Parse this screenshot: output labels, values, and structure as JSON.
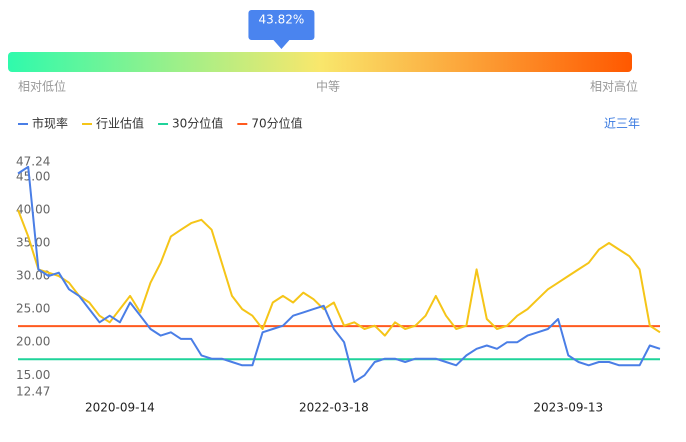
{
  "chart_data": {
    "type": "line",
    "percentile": {
      "value": 43.82,
      "label": "43.82%"
    },
    "scale_labels": [
      "相对低位",
      "中等",
      "相对高位"
    ],
    "range_option": "近三年",
    "ylim": [
      12.47,
      47.24
    ],
    "yticks": [
      47.24,
      {
        "value": 45,
        "label": "45.00"
      },
      {
        "value": 40,
        "label": "40.00"
      },
      {
        "value": 35,
        "label": "35.00"
      },
      {
        "value": 30,
        "label": "30.00"
      },
      {
        "value": 25,
        "label": "25.00"
      },
      {
        "value": 20,
        "label": "20.00"
      },
      {
        "value": 15,
        "label": "15.00"
      },
      12.47
    ],
    "categories": [
      null,
      null,
      null,
      null,
      null,
      null,
      null,
      null,
      null,
      null,
      "2020-09-14",
      null,
      null,
      null,
      null,
      null,
      null,
      null,
      null,
      null,
      null,
      null,
      null,
      null,
      null,
      null,
      null,
      null,
      null,
      null,
      null,
      "2022-03-18",
      null,
      null,
      null,
      null,
      null,
      null,
      null,
      null,
      null,
      null,
      null,
      null,
      null,
      null,
      null,
      null,
      null,
      null,
      null,
      null,
      null,
      null,
      "2023-09-13",
      null,
      null,
      null,
      null,
      null,
      null,
      null,
      null,
      null
    ],
    "series": [
      {
        "name": "市现率",
        "color": "#4a7ee6",
        "values": [
          45.5,
          46.5,
          31,
          30,
          30.5,
          28,
          27,
          25,
          23,
          24,
          23,
          26,
          24,
          22,
          21,
          21.5,
          20.5,
          20.5,
          18,
          17.5,
          17.5,
          17,
          16.5,
          16.5,
          21.5,
          22,
          22.5,
          24,
          24.5,
          25,
          25.5,
          22,
          20,
          14,
          15,
          17,
          17.5,
          17.5,
          17,
          17.5,
          17.5,
          17.5,
          17,
          16.5,
          18,
          19,
          19.5,
          19,
          20,
          20,
          21,
          21.5,
          22,
          23.5,
          18,
          17,
          16.5,
          17,
          17,
          16.5,
          16.5,
          16.5,
          19.5,
          19
        ]
      },
      {
        "name": "行业估值",
        "color": "#f5c518",
        "values": [
          40,
          36,
          31,
          30.5,
          30,
          29,
          27,
          26,
          24,
          23,
          25,
          27,
          24.5,
          29,
          32,
          36,
          37,
          38,
          38.5,
          37,
          32,
          27,
          25,
          24,
          22,
          26,
          27,
          26,
          27.5,
          26.5,
          25,
          26,
          22.5,
          23,
          22,
          22.5,
          21,
          23,
          22,
          22.5,
          24,
          27,
          24,
          22,
          22.5,
          31,
          23.5,
          22,
          22.5,
          24,
          25,
          26.5,
          28,
          29,
          30,
          31,
          32,
          34,
          35,
          34,
          33,
          31,
          22.5,
          21.5
        ]
      },
      {
        "name": "30分位值",
        "color": "#1fd39a",
        "value": 17.42
      },
      {
        "name": "70分位值",
        "color": "#ff5a1f",
        "value": 22.42
      }
    ]
  }
}
